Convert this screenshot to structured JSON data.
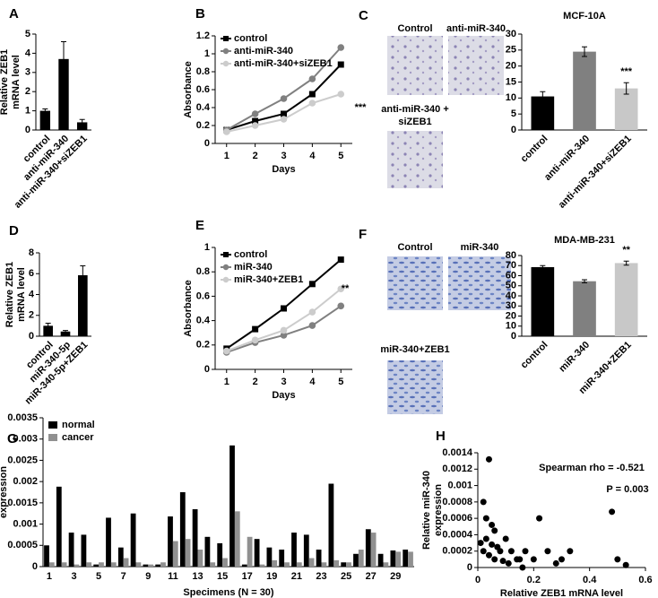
{
  "chart_data": [
    {
      "panel": "A",
      "type": "bar",
      "ylabel": [
        "Relative ZEB1",
        "mRNA level"
      ],
      "categories": [
        "control",
        "anti-miR-340",
        "anti-miR-340+siZEB1"
      ],
      "values": [
        1.0,
        3.7,
        0.4
      ],
      "errors": [
        0.1,
        0.9,
        0.15
      ],
      "color": "#000000",
      "ylim": [
        0,
        5
      ],
      "yticks": [
        0,
        1,
        2,
        3,
        4,
        5
      ]
    },
    {
      "panel": "B",
      "type": "line",
      "ylabel": [
        "Absorbance"
      ],
      "xlabel": "Days",
      "x": [
        1,
        2,
        3,
        4,
        5
      ],
      "xlim": [
        0.6,
        5.4
      ],
      "xticks": [
        1,
        2,
        3,
        4,
        5
      ],
      "ylim": [
        0,
        1.2
      ],
      "yticks": [
        0,
        0.2,
        0.4,
        0.6,
        0.8,
        1,
        1.2
      ],
      "series": [
        {
          "name": "control",
          "color": "#000000",
          "marker": "square",
          "values": [
            0.15,
            0.25,
            0.33,
            0.55,
            0.88
          ]
        },
        {
          "name": "anti-miR-340",
          "color": "#808080",
          "marker": "circle",
          "values": [
            0.15,
            0.33,
            0.5,
            0.72,
            1.07
          ]
        },
        {
          "name": "anti-miR-340+siZEB1",
          "color": "#cccccc",
          "marker": "circle",
          "values": [
            0.13,
            0.2,
            0.27,
            0.45,
            0.55
          ]
        }
      ],
      "annotations": [
        "***"
      ]
    },
    {
      "type": "bar",
      "title": "MCF-10A",
      "categories": [
        "control",
        "anti-miR-340",
        "anti-miR-340+siZEB1"
      ],
      "values": [
        10.5,
        24.5,
        13
      ],
      "errors": [
        1.5,
        1.5,
        1.8
      ],
      "colors": [
        "#000000",
        "#808080",
        "#c8c8c8"
      ],
      "ylim": [
        0,
        30
      ],
      "yticks": [
        0,
        5,
        10,
        15,
        20,
        25,
        30
      ],
      "annotations": [
        "***"
      ]
    },
    {
      "panel": "D",
      "type": "bar",
      "ylabel": [
        "Relative ZEB1",
        "mRNA level"
      ],
      "categories": [
        "control",
        "miR-340-5p",
        "miR-340-5p+ZEB1"
      ],
      "values": [
        1.0,
        0.45,
        5.85
      ],
      "errors": [
        0.25,
        0.1,
        0.9
      ],
      "color": "#000000",
      "ylim": [
        0,
        8
      ],
      "yticks": [
        0,
        2,
        4,
        6,
        8
      ]
    },
    {
      "panel": "E",
      "type": "line",
      "ylabel": [
        "Absorbance"
      ],
      "xlabel": "Days",
      "x": [
        1,
        2,
        3,
        4,
        5
      ],
      "xlim": [
        0.6,
        5.4
      ],
      "xticks": [
        1,
        2,
        3,
        4,
        5
      ],
      "ylim": [
        0,
        1
      ],
      "yticks": [
        0,
        0.2,
        0.4,
        0.6,
        0.8,
        1
      ],
      "series": [
        {
          "name": "control",
          "color": "#000000",
          "marker": "square",
          "values": [
            0.17,
            0.33,
            0.5,
            0.7,
            0.9
          ]
        },
        {
          "name": "miR-340",
          "color": "#808080",
          "marker": "circle",
          "values": [
            0.14,
            0.22,
            0.28,
            0.36,
            0.52
          ]
        },
        {
          "name": "miR-340+ZEB1",
          "color": "#cccccc",
          "marker": "circle",
          "values": [
            0.15,
            0.24,
            0.32,
            0.47,
            0.66
          ]
        }
      ],
      "annotations": [
        "**"
      ]
    },
    {
      "type": "bar",
      "title": "MDA-MB-231",
      "categories": [
        "control",
        "miR-340",
        "miR-340+ZEB1"
      ],
      "values": [
        68.5,
        54.5,
        72.5
      ],
      "errors": [
        1.5,
        1.5,
        2
      ],
      "colors": [
        "#000000",
        "#808080",
        "#c8c8c8"
      ],
      "ylim": [
        0,
        80
      ],
      "yticks": [
        0,
        10,
        20,
        30,
        40,
        50,
        60,
        70,
        80
      ],
      "annotations": [
        "**"
      ]
    },
    {
      "panel": "G",
      "type": "bar",
      "ylabel": [
        "Relative miR-340",
        "expression"
      ],
      "xlabel": "Specimens (N = 30)",
      "categories": [
        1,
        null,
        3,
        null,
        5,
        null,
        7,
        null,
        9,
        null,
        11,
        null,
        13,
        null,
        15,
        null,
        17,
        null,
        19,
        null,
        21,
        null,
        23,
        null,
        25,
        null,
        27,
        null,
        29,
        null
      ],
      "ylim": [
        0,
        0.0035
      ],
      "yticks": [
        0,
        0.0005,
        0.001,
        0.0015,
        0.002,
        0.0025,
        0.003,
        0.0035
      ],
      "legend": "top-left",
      "series": [
        {
          "name": "normal",
          "color": "#000000",
          "values": [
            0.0005,
            0.00188,
            0.0008,
            0.00075,
            5e-05,
            0.00115,
            0.00045,
            0.00125,
            5e-05,
            5e-05,
            0.00118,
            0.00175,
            0.00135,
            0.0007,
            0.00055,
            0.00285,
            5e-05,
            0.00065,
            0.00045,
            0.0004,
            0.0008,
            0.00075,
            0.0004,
            0.00195,
            0.0001,
            0.0003,
            0.00088,
            0.0003,
            0.00038,
            0.0004
          ]
        },
        {
          "name": "cancer",
          "color": "#909090",
          "values": [
            0.0001,
            0.0001,
            5e-05,
            0.0001,
            0.0001,
            0.0001,
            0.0002,
            0.0001,
            5e-05,
            0.0001,
            0.0006,
            0.00065,
            0.0004,
            0.0001,
            0.0002,
            0.0013,
            0.0007,
            5e-05,
            0.00015,
            0.0001,
            0.0001,
            0.0002,
            0.0001,
            0.00015,
            0.0001,
            0.0004,
            0.0008,
            0.0001,
            0.00035,
            0.00035
          ]
        }
      ]
    },
    {
      "panel": "H",
      "type": "scatter",
      "ylabel": [
        "Relative miR-340",
        "expression"
      ],
      "xlabel": "Relative ZEB1 mRNA level",
      "xlim": [
        0,
        0.6
      ],
      "xticks": [
        0,
        0.2,
        0.4,
        0.6
      ],
      "ylim": [
        0,
        0.0014
      ],
      "yticks": [
        0,
        0.0002,
        0.0004,
        0.0006,
        0.0008,
        0.001,
        0.0012,
        0.0014
      ],
      "color": "#000000",
      "x": [
        0.02,
        0.04,
        0.03,
        0.05,
        0.06,
        0.03,
        0.01,
        0.05,
        0.07,
        0.08,
        0.1,
        0.12,
        0.02,
        0.04,
        0.06,
        0.09,
        0.11,
        0.15,
        0.17,
        0.2,
        0.22,
        0.25,
        0.28,
        0.3,
        0.33,
        0.14,
        0.16,
        0.48,
        0.5,
        0.53
      ],
      "values": [
        0.0008,
        0.00132,
        0.0006,
        0.00052,
        0.00045,
        0.00035,
        0.0003,
        0.00028,
        0.00025,
        0.0002,
        0.00035,
        0.0002,
        0.0002,
        0.00015,
        0.0001,
        8e-05,
        5e-05,
        0.0001,
        0.0002,
        0.0001,
        0.0006,
        0.0002,
        5e-05,
        0.0001,
        0.0002,
        0.0001,
        0,
        0.00068,
        0.0001,
        3e-05
      ],
      "annotations": [
        "Spearman rho = -0.521",
        "P = 0.003"
      ]
    }
  ],
  "micrographs": [
    {
      "panel": "C",
      "captions": [
        [
          "Control"
        ],
        [
          "anti-miR-340"
        ],
        [
          "anti-miR-340 +",
          "siZEB1"
        ]
      ]
    },
    {
      "panel": "F",
      "captions": [
        [
          "Control"
        ],
        [
          "miR-340"
        ],
        [
          "miR-340+ZEB1"
        ]
      ]
    }
  ]
}
